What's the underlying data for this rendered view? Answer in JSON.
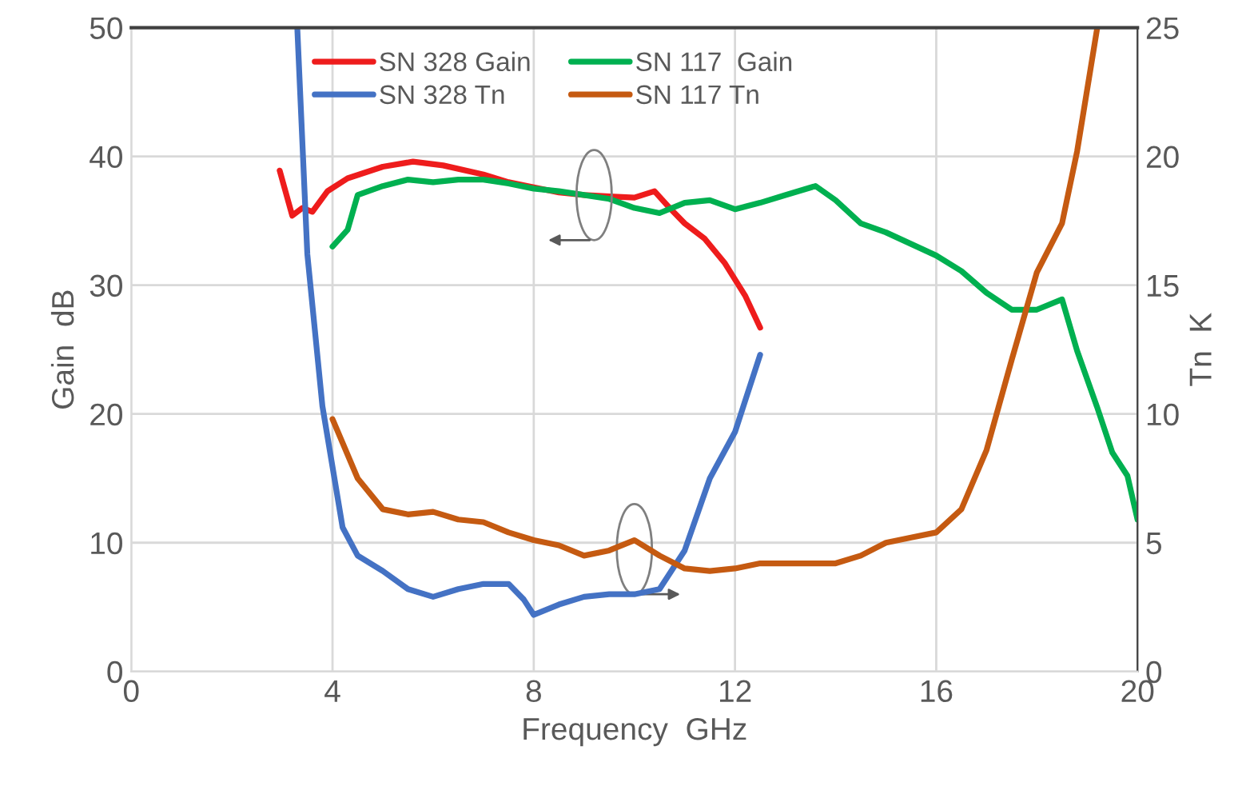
{
  "chart_data": {
    "type": "line",
    "xlabel": "Frequency  GHz",
    "ylabel": "Gain  dB",
    "y2label": "Tn  K",
    "xlim": [
      0,
      20
    ],
    "xticks": [
      0,
      4,
      8,
      12,
      16,
      20
    ],
    "ylim": [
      0,
      50
    ],
    "yticks": [
      0,
      10,
      20,
      30,
      40,
      50
    ],
    "y2lim": [
      0,
      25
    ],
    "y2ticks": [
      0,
      5,
      10,
      15,
      20,
      25
    ],
    "grid": true,
    "legend": "top",
    "marker": "none",
    "line_style": "solid",
    "series": [
      {
        "name": "SN 328 Gain",
        "color": "#ee1c1c",
        "axis": "y",
        "x": [
          2.95,
          3.2,
          3.4,
          3.6,
          3.9,
          4.3,
          5,
          5.6,
          6.2,
          7,
          7.5,
          8,
          8.5,
          9,
          9.5,
          10,
          10.4,
          10.7,
          11,
          11.4,
          11.8,
          12.2,
          12.5
        ],
        "values": [
          38.9,
          35.4,
          36,
          35.7,
          37.3,
          38.3,
          39.2,
          39.6,
          39.3,
          38.6,
          38,
          37.6,
          37.2,
          37,
          36.9,
          36.8,
          37.3,
          36,
          34.8,
          33.6,
          31.7,
          29.2,
          26.7
        ]
      },
      {
        "name": "SN 328 Tn",
        "color": "#4472c4",
        "axis": "y2",
        "x": [
          3.3,
          3.5,
          3.8,
          4.2,
          4.5,
          5,
          5.5,
          6,
          6.5,
          7,
          7.5,
          7.8,
          8,
          8.5,
          9,
          9.5,
          10,
          10.5,
          11,
          11.5,
          12,
          12.5
        ],
        "values": [
          25,
          16.2,
          10.3,
          5.6,
          4.5,
          3.9,
          3.2,
          2.9,
          3.2,
          3.4,
          3.4,
          2.8,
          2.2,
          2.6,
          2.9,
          3.0,
          3.0,
          3.2,
          4.7,
          7.5,
          9.3,
          12.3
        ]
      },
      {
        "name": "SN 117  Gain",
        "color": "#00b050",
        "axis": "y",
        "x": [
          4,
          4.3,
          4.5,
          5,
          5.5,
          6,
          6.5,
          7,
          7.5,
          8,
          8.5,
          9,
          9.5,
          10,
          10.5,
          11,
          11.5,
          12,
          12.5,
          13,
          13.6,
          14,
          14.5,
          15,
          15.5,
          16,
          16.5,
          17,
          17.5,
          18,
          18.5,
          18.8,
          19.2,
          19.5,
          19.8,
          20
        ],
        "values": [
          33,
          34.3,
          37,
          37.7,
          38.2,
          38,
          38.2,
          38.2,
          37.9,
          37.5,
          37.3,
          37,
          36.7,
          36,
          35.6,
          36.4,
          36.6,
          35.9,
          36.4,
          37,
          37.7,
          36.6,
          34.8,
          34.1,
          33.2,
          32.3,
          31.1,
          29.4,
          28.1,
          28.1,
          28.9,
          24.9,
          20.5,
          17,
          15.2,
          11.8
        ]
      },
      {
        "name": "SN 117 Tn",
        "color": "#c55a11",
        "axis": "y2",
        "x": [
          4,
          4.5,
          5,
          5.5,
          6,
          6.5,
          7,
          7.5,
          8,
          8.5,
          9,
          9.5,
          10,
          10.5,
          11,
          11.5,
          12,
          12.5,
          13,
          14,
          14.5,
          15,
          15.5,
          16,
          16.5,
          17,
          17.5,
          18,
          18.5,
          18.8,
          19.2
        ],
        "values": [
          9.8,
          7.5,
          6.3,
          6.1,
          6.2,
          5.9,
          5.8,
          5.4,
          5.1,
          4.9,
          4.5,
          4.7,
          5.1,
          4.5,
          4.0,
          3.9,
          4.0,
          4.2,
          4.2,
          4.2,
          4.5,
          5.0,
          5.2,
          5.4,
          6.3,
          8.6,
          12.1,
          15.5,
          17.4,
          20.2,
          25
        ]
      }
    ]
  }
}
